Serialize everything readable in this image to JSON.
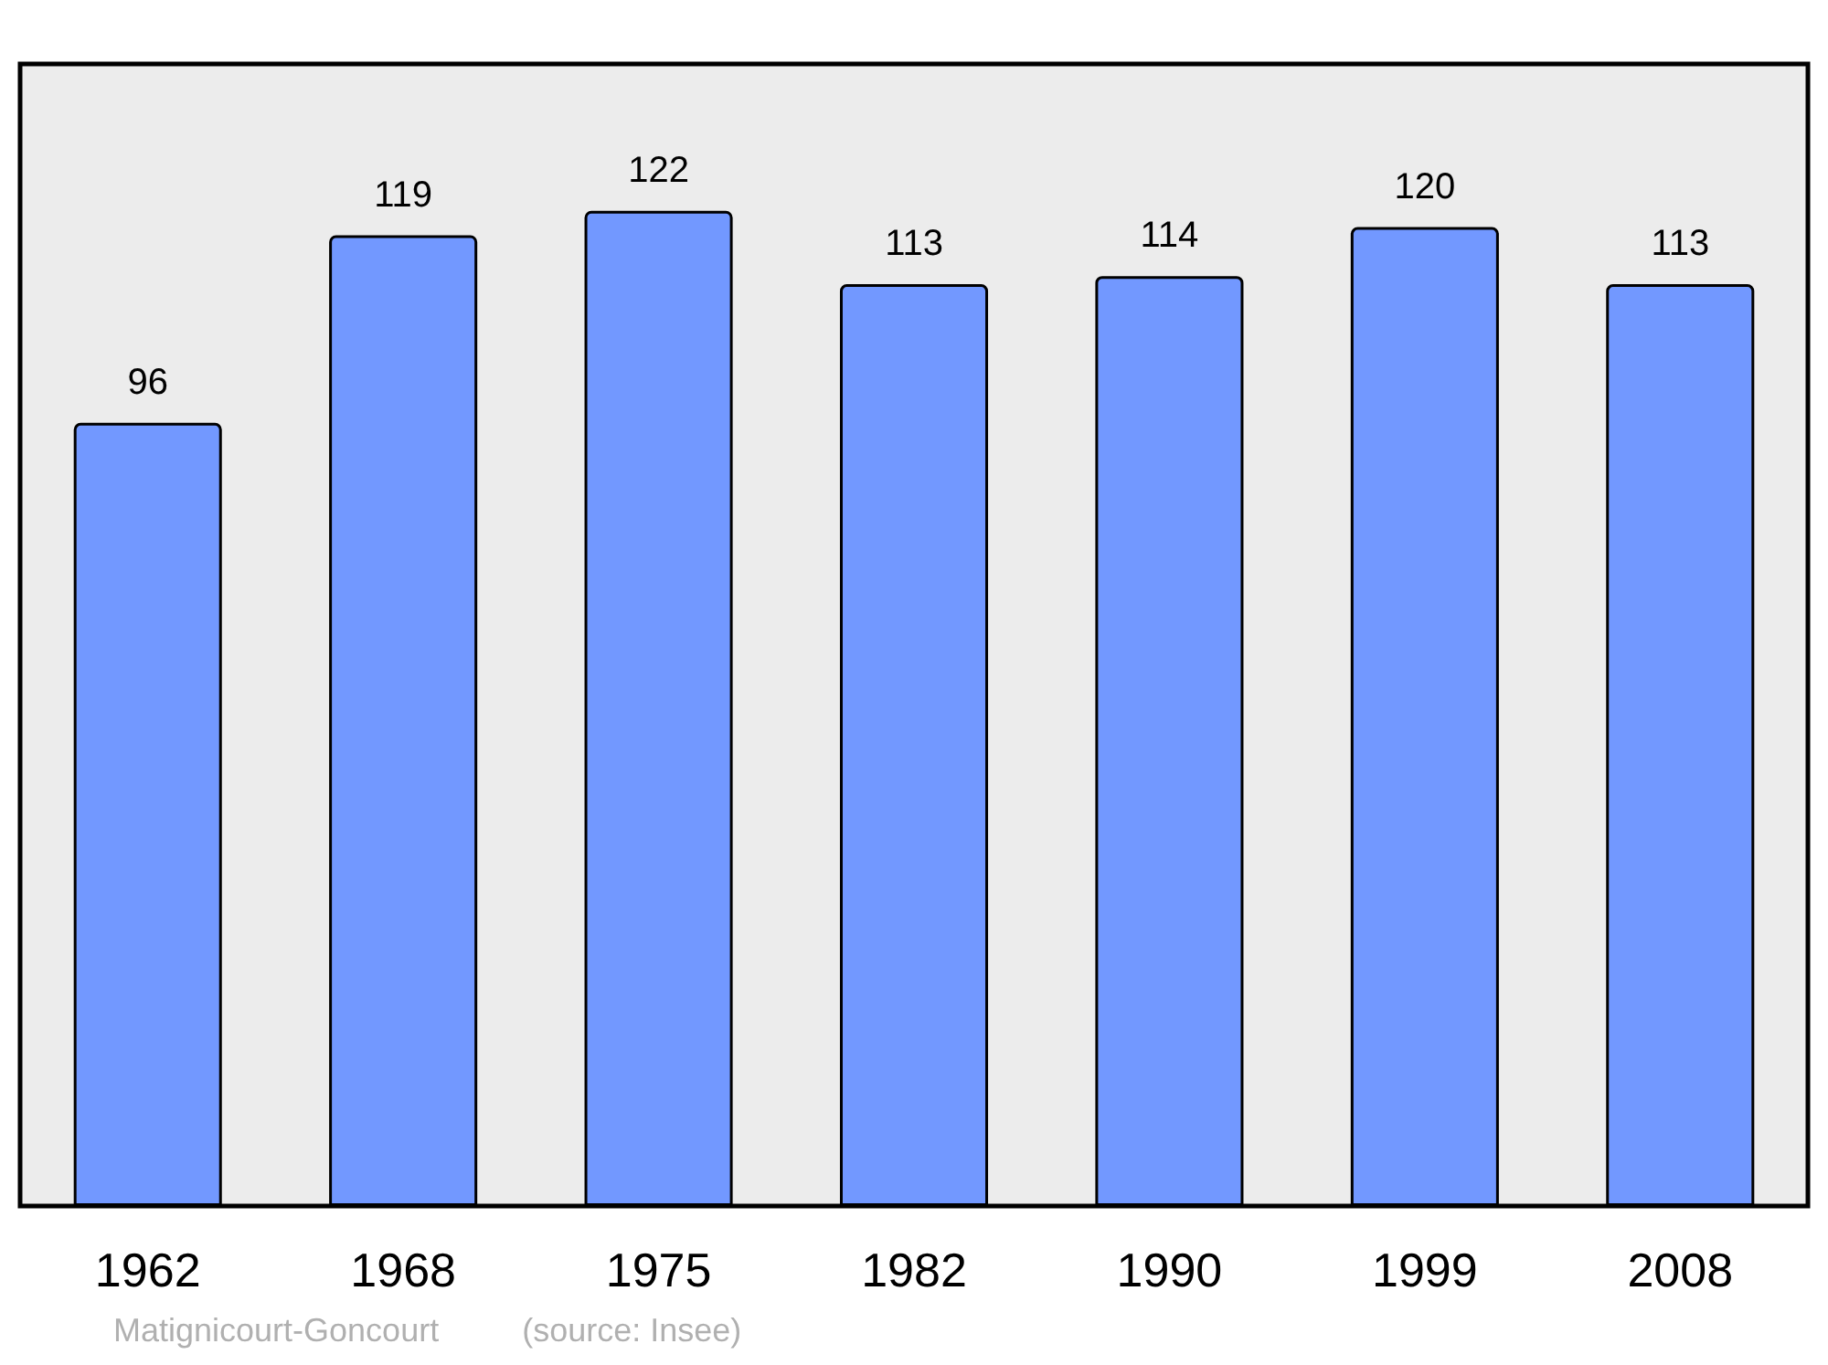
{
  "chart_data": {
    "type": "bar",
    "categories": [
      "1962",
      "1968",
      "1975",
      "1982",
      "1990",
      "1999",
      "2008"
    ],
    "values": [
      96,
      119,
      122,
      113,
      114,
      120,
      113
    ],
    "color": "#7298ff",
    "data_labels": true,
    "annotations": [
      "Matignicourt-Goncourt",
      "(source: Insee)"
    ]
  }
}
